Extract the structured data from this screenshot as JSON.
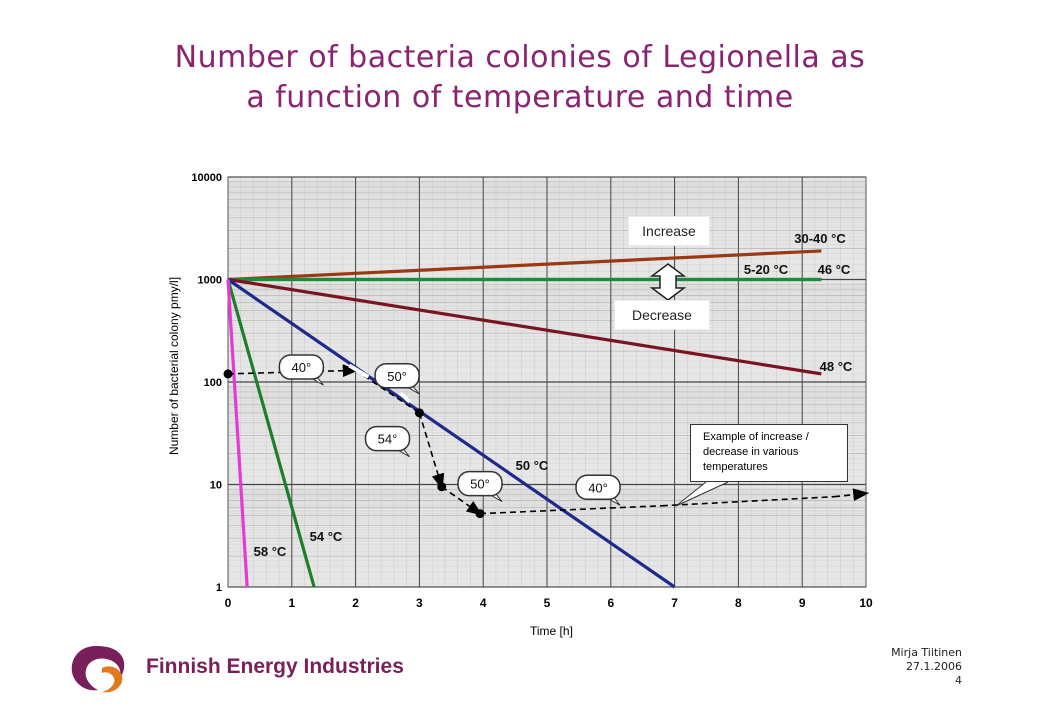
{
  "slide": {
    "title_line1": "Number of bacteria colonies of Legionella as",
    "title_line2": "a function of temperature and time",
    "title_color": "#8b2470"
  },
  "chart_data": {
    "type": "line",
    "ylabel": "Number of bacterial colony pmy/l]",
    "xlabel": "Time [h]",
    "xlim": [
      0,
      10
    ],
    "ylim": [
      1,
      10000
    ],
    "y_scale": "log",
    "x_ticks": [
      "0",
      "1",
      "2",
      "3",
      "4",
      "5",
      "6",
      "7",
      "8",
      "9",
      "10"
    ],
    "y_ticks": [
      "1",
      "10",
      "100",
      "1000",
      "10000"
    ],
    "grid": true,
    "series": [
      {
        "name": "30-40 °C",
        "color": "#9b3a12",
        "x": [
          0,
          9.3
        ],
        "y": [
          1000,
          1900
        ]
      },
      {
        "name": "5-20 °C",
        "color": "#1f8a3e",
        "x": [
          0,
          9.3
        ],
        "y": [
          1000,
          1000
        ]
      },
      {
        "name": "46 °C",
        "color": "#1f8a3e",
        "x": [
          0,
          9.3
        ],
        "y": [
          1000,
          1000
        ]
      },
      {
        "name": "48 °C",
        "color": "#7a1420",
        "x": [
          0,
          9.3
        ],
        "y": [
          1000,
          120
        ]
      },
      {
        "name": "50 °C",
        "color": "#1c2a8c",
        "x": [
          0,
          7
        ],
        "y": [
          1000,
          1
        ]
      },
      {
        "name": "54 °C",
        "color": "#1b7f2c",
        "x": [
          0,
          1.35
        ],
        "y": [
          1000,
          1
        ]
      },
      {
        "name": "58 °C",
        "color": "#e63ad6",
        "x": [
          0,
          0.3
        ],
        "y": [
          1000,
          1
        ]
      }
    ],
    "example_path": {
      "x": [
        0,
        2,
        3,
        3.35,
        3.95,
        6.8,
        9.5,
        10
      ],
      "y": [
        120,
        130,
        50,
        9.5,
        5.2,
        6.2,
        7.6,
        8.2
      ]
    },
    "example_points": [
      {
        "x": 0,
        "y": 120
      },
      {
        "x": 3,
        "y": 50
      },
      {
        "x": 3.35,
        "y": 9.5
      },
      {
        "x": 3.95,
        "y": 5.2
      }
    ],
    "speech_bubbles": [
      {
        "label": "40°",
        "x": 1.15,
        "y": 140
      },
      {
        "label": "50°",
        "x": 2.65,
        "y": 115
      },
      {
        "label": "54°",
        "x": 2.5,
        "y": 28
      },
      {
        "label": "50°",
        "x": 3.95,
        "y": 10.2
      },
      {
        "label": "40°",
        "x": 5.8,
        "y": 9.4
      }
    ],
    "annotations": {
      "increase": "Increase",
      "decrease": "Decrease",
      "example": "Example of increase / decrease in various temperatures"
    }
  },
  "footer": {
    "author": "Mirja Tiitinen",
    "date": "27.1.2006",
    "page": "4"
  },
  "logo": {
    "text": "Finnish Energy Industries",
    "text_color": "#7a1f5c",
    "mark_color_purple": "#7a1f5c",
    "mark_color_orange": "#e2771d"
  }
}
